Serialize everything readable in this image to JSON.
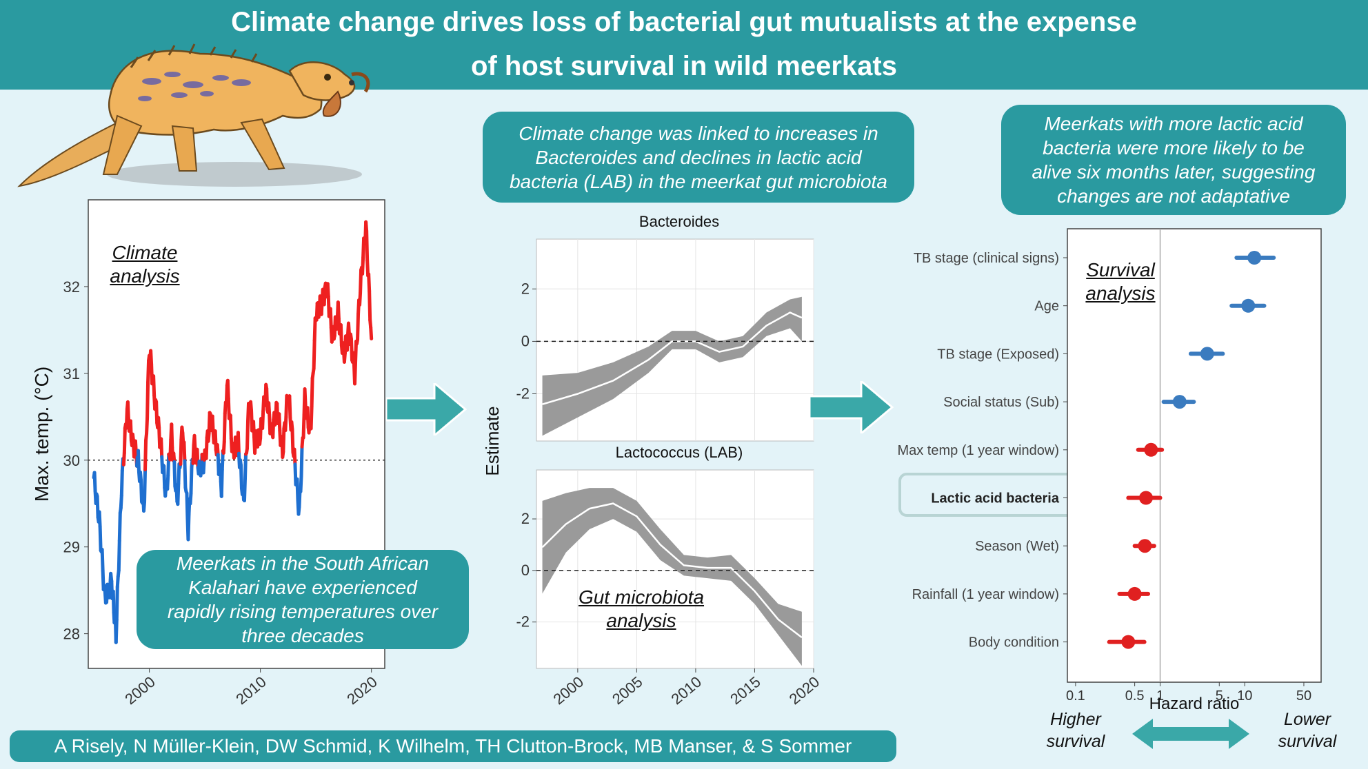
{
  "title": {
    "line1": "Climate change drives loss of bacterial gut mutualists at the expense",
    "line2": "of host survival in wild meerkats"
  },
  "callouts": {
    "climate": [
      "Meerkats in the South African",
      "Kalahari have experienced",
      "rapidly rising temperatures over",
      "three decades"
    ],
    "microbiota": [
      "Climate change was linked to increases in",
      "Bacteroides and declines in lactic acid",
      "bacteria (LAB) in the meerkat gut microbiota"
    ],
    "survival": [
      "Meerkats with more lactic acid",
      "bacteria were more likely to be",
      "alive six months later, suggesting",
      "changes are not adaptative"
    ]
  },
  "section_labels": {
    "climate": [
      "Climate",
      "analysis"
    ],
    "microbiota": [
      "Gut microbiota",
      "analysis"
    ],
    "survival": [
      "Survival",
      "analysis"
    ]
  },
  "authors": "A Risely, N Müller-Klein, DW Schmid, K Wilhelm, TH Clutton-Brock, MB Manser, & S Sommer",
  "bottom_labels": {
    "higher": [
      "Higher",
      "survival"
    ],
    "lower": [
      "Lower",
      "survival"
    ]
  },
  "colors": {
    "teal": "#2a9aa0",
    "warm": "#ee2020",
    "cool": "#1e6fd0",
    "blue_point": "#3a7bbf",
    "red_point": "#e02020"
  },
  "chart_data": [
    {
      "type": "line",
      "ylabel": "Max. temp. (°C)",
      "xlim": [
        1994.5,
        2021.2
      ],
      "ylim": [
        27.6,
        33.0
      ],
      "x_ticks": [
        2000,
        2010,
        2020
      ],
      "y_ticks": [
        28,
        29,
        30,
        31,
        32
      ],
      "reference_line": 30,
      "series": [
        {
          "x": [
            1995,
            1995.5,
            1996,
            1996.6,
            1997,
            1997.5,
            1998,
            1998.5,
            1999,
            1999.5,
            2000,
            2000.5,
            2001,
            2001.5,
            2002,
            2002.5,
            2003,
            2003.5,
            2004,
            2004.5,
            2005,
            2005.5,
            2006,
            2006.5,
            2007,
            2007.5,
            2008,
            2008.5,
            2009,
            2009.5,
            2010,
            2010.5,
            2011,
            2011.5,
            2012,
            2012.5,
            2013,
            2013.5,
            2014,
            2014.5,
            2015,
            2015.5,
            2016,
            2016.5,
            2017,
            2017.5,
            2018,
            2018.5,
            2019,
            2019.5,
            2020
          ],
          "y": [
            29.8,
            29.3,
            28.4,
            28.6,
            28.0,
            29.7,
            30.6,
            30.2,
            30.0,
            29.4,
            31.3,
            30.7,
            30.2,
            29.6,
            30.3,
            29.5,
            30.4,
            29.2,
            30.2,
            29.9,
            30.0,
            30.5,
            30.2,
            29.7,
            30.9,
            30.1,
            30.2,
            29.5,
            30.7,
            30.2,
            30.3,
            30.8,
            30.3,
            30.6,
            30.1,
            30.8,
            30.1,
            29.4,
            30.7,
            30.3,
            31.7,
            31.8,
            32.0,
            31.4,
            31.7,
            31.2,
            31.5,
            31.0,
            32.0,
            32.7,
            31.4
          ]
        }
      ]
    },
    {
      "type": "area",
      "title": "Bacteroides",
      "ylabel": "Estimate",
      "xlim": [
        1996.5,
        2020
      ],
      "ylim": [
        -3.8,
        3.9
      ],
      "x_ticks": [
        2000,
        2005,
        2010,
        2015,
        2020
      ],
      "y_ticks": [
        -2,
        0,
        2
      ],
      "x": [
        1997,
        2000,
        2003,
        2006,
        2008,
        2010,
        2012,
        2014,
        2016,
        2018,
        2019
      ],
      "estimate": [
        -2.4,
        -2.0,
        -1.5,
        -0.7,
        0.0,
        0.0,
        -0.4,
        -0.2,
        0.6,
        1.1,
        0.9
      ],
      "lower": [
        -3.6,
        -2.9,
        -2.2,
        -1.2,
        -0.3,
        -0.3,
        -0.8,
        -0.6,
        0.2,
        0.5,
        0.0
      ],
      "upper": [
        -1.3,
        -1.2,
        -0.8,
        -0.2,
        0.4,
        0.4,
        0.0,
        0.2,
        1.1,
        1.6,
        1.7
      ]
    },
    {
      "type": "area",
      "title": "Lactococcus (LAB)",
      "xlim": [
        1996.5,
        2020
      ],
      "ylim": [
        -3.8,
        3.9
      ],
      "x_ticks": [
        2000,
        2005,
        2010,
        2015,
        2020
      ],
      "y_ticks": [
        -2,
        0,
        2
      ],
      "x": [
        1997,
        1999,
        2001,
        2003,
        2005,
        2007,
        2009,
        2011,
        2013,
        2015,
        2017,
        2019
      ],
      "estimate": [
        0.9,
        1.8,
        2.4,
        2.6,
        2.1,
        1.0,
        0.2,
        0.1,
        0.1,
        -0.8,
        -1.9,
        -2.6
      ],
      "lower": [
        -0.9,
        0.7,
        1.6,
        2.0,
        1.5,
        0.4,
        -0.2,
        -0.3,
        -0.4,
        -1.3,
        -2.5,
        -3.7
      ],
      "upper": [
        2.7,
        3.0,
        3.2,
        3.2,
        2.7,
        1.6,
        0.6,
        0.5,
        0.6,
        -0.3,
        -1.3,
        -1.6
      ]
    },
    {
      "type": "scatter",
      "xlabel": "Hazard ratio",
      "x_scale": "log",
      "xlim": [
        0.08,
        80
      ],
      "x_ticks": [
        0.1,
        0.5,
        1,
        5,
        10,
        50
      ],
      "x_tick_labels": [
        "0.1",
        "0.5",
        "1",
        "5",
        "10",
        "50"
      ],
      "reference_line": 1,
      "categories": [
        "TB stage (clinical signs)",
        "Age",
        "TB stage (Exposed)",
        "Social status (Sub)",
        "Max temp (1 year window)",
        "Lactic acid bacteria",
        "Season (Wet)",
        "Rainfall (1 year window)",
        "Body condition"
      ],
      "estimate": [
        13,
        11,
        3.6,
        1.7,
        0.78,
        0.68,
        0.66,
        0.5,
        0.42
      ],
      "lower": [
        8,
        7,
        2.3,
        1.1,
        0.55,
        0.42,
        0.5,
        0.33,
        0.25
      ],
      "upper": [
        22,
        17,
        5.5,
        2.5,
        1.05,
        1.0,
        0.85,
        0.72,
        0.65
      ],
      "highlighted": "Lactic acid bacteria"
    }
  ]
}
